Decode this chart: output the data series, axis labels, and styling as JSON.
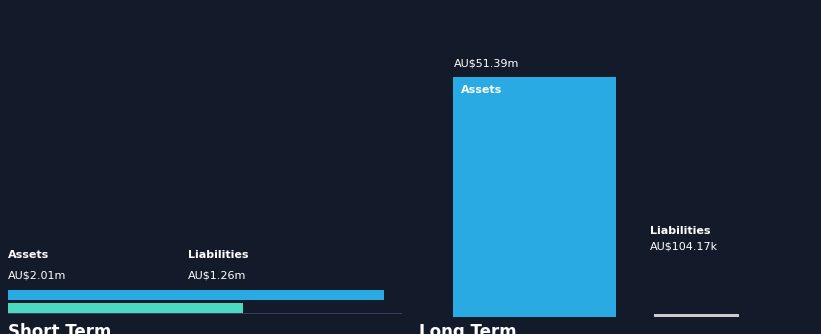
{
  "bg_color": "#131a2a",
  "text_color": "#ffffff",
  "short_term": {
    "assets_label": "Assets",
    "assets_value_label": "AU$2.01m",
    "assets_value": 2.01,
    "assets_color": "#29aae2",
    "liabilities_label": "Liabilities",
    "liabilities_value_label": "AU$1.26m",
    "liabilities_value": 1.26,
    "liabilities_color": "#4dd9c0",
    "section_label": "Short Term"
  },
  "long_term": {
    "assets_label": "Assets",
    "assets_value_label": "AU$51.39m",
    "assets_value": 51.39,
    "assets_color": "#29aae2",
    "liabilities_label": "Liabilities",
    "liabilities_value_label": "AU$104.17k",
    "liabilities_value": 0.10417,
    "liabilities_color": "#aaaaaa",
    "section_label": "Long Term"
  },
  "font_size_label": 8,
  "font_size_value": 8,
  "font_size_section": 12,
  "font_size_bar_label": 8
}
